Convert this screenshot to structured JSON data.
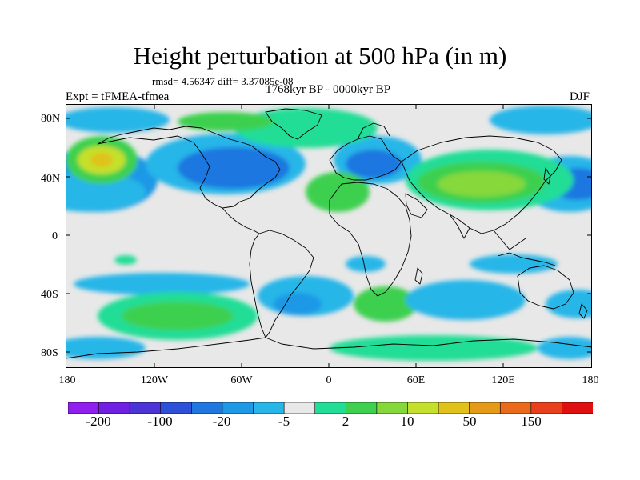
{
  "title": "Height perturbation at 500 hPa (in m)",
  "stats": "rmsd= 4.56347 diff= 3.37085e-08",
  "period": "1768kyr BP - 0000kyr BP",
  "experiment": "Expt = tFMEA-tfmea",
  "season": "DJF",
  "lat_ticks": [
    "80N",
    "40N",
    "0",
    "40S",
    "80S"
  ],
  "lon_ticks": [
    "180",
    "120W",
    "60W",
    "0",
    "60E",
    "120E",
    "180"
  ],
  "colorbar": {
    "labels": [
      "-200",
      "-100",
      "-20",
      "-5",
      "2",
      "10",
      "50",
      "150"
    ],
    "colors": [
      "#8f1eef",
      "#6f20e2",
      "#4d34d6",
      "#2e50d8",
      "#1f77e0",
      "#1f98e6",
      "#27b6e8",
      "#e8e8e8",
      "#22dd96",
      "#3ed04f",
      "#86d83a",
      "#c4e02c",
      "#e0c21a",
      "#e59b18",
      "#e86a1a",
      "#e8401c",
      "#e01010"
    ]
  },
  "colors": {
    "background": "#e8e8e8",
    "land_outline": "#000000",
    "title_text": "#000000"
  }
}
